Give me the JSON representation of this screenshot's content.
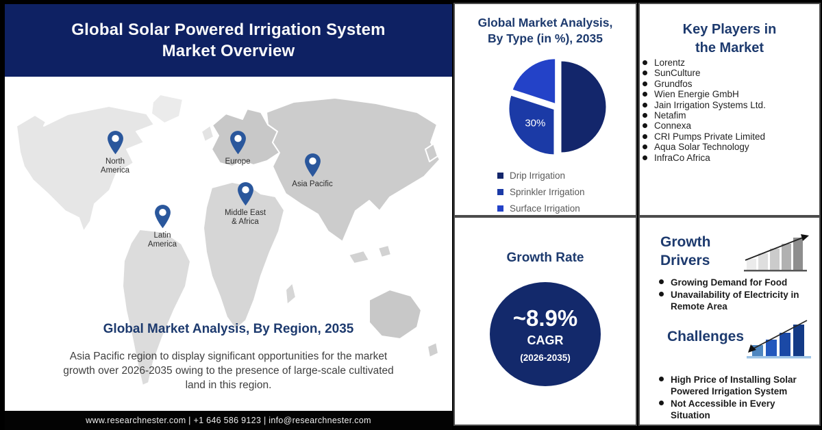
{
  "colors": {
    "header_bg": "#0e2163",
    "heading_text": "#1d3a6e",
    "growth_circle": "#13296b",
    "pin": "#2a579c",
    "footer_bg": "#030303",
    "legend_text": "#595959"
  },
  "page": {
    "title_line1": "Global Solar Powered Irrigation System",
    "title_line2": "Market Overview",
    "footer_contact": "www.researchnester.com  |  +1 646 586 9123  |  info@researchnester.com"
  },
  "region_section": {
    "heading": "Global Market Analysis, By Region, 2035",
    "description": "Asia Pacific region to display significant opportunities for the market growth over 2026-2035 owing to the presence of large-scale cultivated land in this region.",
    "regions": [
      {
        "line1": "North",
        "line2": "America"
      },
      {
        "line1": "Europe",
        "line2": ""
      },
      {
        "line1": "Asia Pacific",
        "line2": ""
      },
      {
        "line1": "Middle East",
        "line2": "& Africa"
      },
      {
        "line1": "Latin",
        "line2": "America"
      }
    ]
  },
  "type_chart": {
    "heading_line1": "Global Market Analysis,",
    "heading_line2": "By Type (in %), 2035"
  },
  "chart_data": {
    "type": "pie",
    "title": "Global Market Analysis, By Type (in %), 2035",
    "labels": [
      "Drip Irrigation",
      "Sprinkler Irrigation",
      "Surface Irrigation"
    ],
    "values": [
      50,
      30,
      20
    ],
    "displayed_value_labels": [
      "",
      "30%",
      ""
    ],
    "colors": [
      "#13266b",
      "#1b3aa6",
      "#2342c8"
    ],
    "start_angle_deg": 0,
    "direction": "clockwise",
    "legend_position": "bottom"
  },
  "growth_rate": {
    "heading": "Growth Rate",
    "value": "~8.9%",
    "label": "CAGR",
    "period": "(2026-2035)"
  },
  "key_players": {
    "heading_line1": "Key Players in",
    "heading_line2": "the Market",
    "items": [
      "Lorentz",
      "SunCulture",
      "Grundfos",
      "Wien Energie GmbH",
      "Jain Irrigation Systems Ltd.",
      "Netafim",
      "Connexa",
      "CRI Pumps Private Limited",
      "Aqua Solar Technology",
      "InfraCo Africa"
    ]
  },
  "growth_drivers": {
    "heading_line1": "Growth",
    "heading_line2": "Drivers",
    "bullets": [
      "Growing Demand for Food",
      "Unavailability of Electricity in Remote Area"
    ]
  },
  "challenges": {
    "heading": "Challenges",
    "bullets": [
      "High Price of Installing Solar Powered Irrigation System",
      "Not Accessible in Every Situation"
    ]
  }
}
